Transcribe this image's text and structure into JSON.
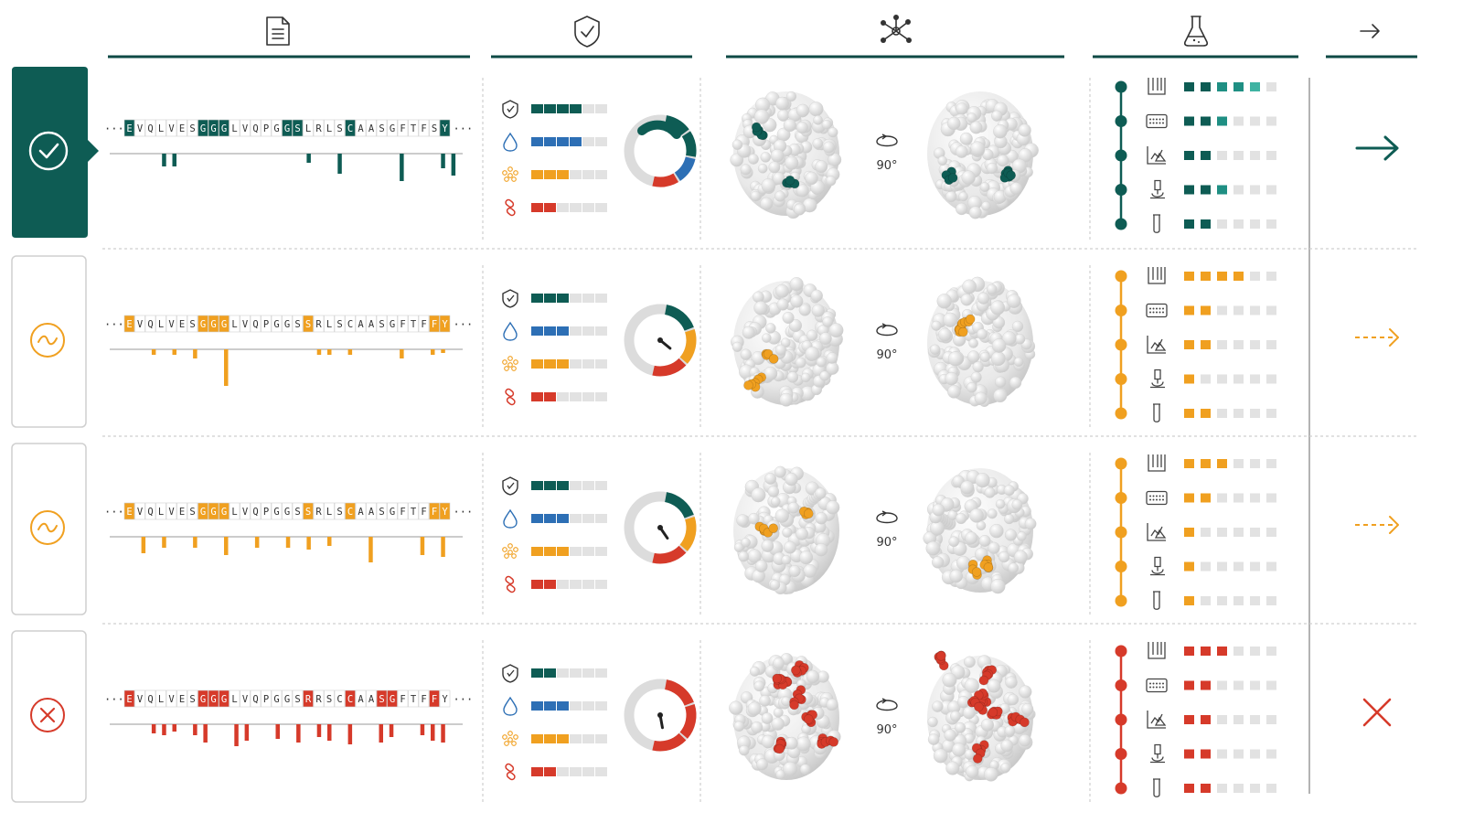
{
  "colors": {
    "teal": "#0e5c54",
    "teal_mid": "#1f8f83",
    "teal_light": "#3fb3a2",
    "orange": "#f0a020",
    "red": "#d63a2a",
    "blue": "#2d6fb5",
    "grey_cell": "#e2e2e2",
    "grey_line": "#c8c8c8",
    "header_line": "#0e4a45"
  },
  "header_icons": [
    "document-icon",
    "shield-check-icon",
    "network-nodes-icon",
    "flask-icon",
    "arrow-right-icon"
  ],
  "sequence_ellipsis": "···",
  "metric_icons": [
    "shield-icon",
    "droplet-icon",
    "cluster-icon",
    "link-icon"
  ],
  "assay_icons": [
    "test-tubes-icon",
    "plate-reader-icon",
    "chart-flask-icon",
    "microscope-icon",
    "vial-icon"
  ],
  "rows": [
    {
      "status": "pass",
      "status_icon": "check-circle-icon",
      "accent": "teal",
      "sequence": [
        "E",
        "V",
        "Q",
        "L",
        "V",
        "E",
        "S",
        "G",
        "G",
        "G",
        "L",
        "V",
        "Q",
        "P",
        "G",
        "G",
        "S",
        "L",
        "R",
        "L",
        "S",
        "C",
        "A",
        "A",
        "S",
        "G",
        "F",
        "T",
        "F",
        "S",
        "Y"
      ],
      "highlights": [
        0,
        7,
        8,
        9,
        15,
        16,
        21,
        30
      ],
      "profile_bars": [
        0,
        0,
        0,
        0,
        0,
        0,
        0,
        0,
        0,
        0,
        0,
        0,
        0,
        0,
        0,
        0,
        0,
        0,
        0,
        0,
        0,
        0,
        0,
        0,
        0,
        0,
        0,
        0,
        0,
        0,
        0
      ],
      "profile_values": [
        0,
        0,
        0,
        0,
        0.35,
        0.35,
        0,
        0,
        0,
        0,
        0,
        0,
        0,
        0,
        0,
        0,
        0,
        0,
        0.25,
        0,
        0,
        0.55,
        0,
        0,
        0,
        0,
        0,
        0.75,
        0,
        0,
        0,
        0.4,
        0.6
      ],
      "metrics": [
        4,
        4,
        3,
        2
      ],
      "gauge": {
        "value": 0.85,
        "segments": [
          "teal",
          "teal",
          "blue",
          "red"
        ]
      },
      "rotation": "90°",
      "assay_levels": [
        5,
        3,
        2,
        3,
        2
      ],
      "decision": "advance"
    },
    {
      "status": "marginal",
      "status_icon": "tilde-circle-icon",
      "accent": "orange",
      "sequence": [
        "E",
        "V",
        "Q",
        "L",
        "V",
        "E",
        "S",
        "G",
        "G",
        "G",
        "L",
        "V",
        "Q",
        "P",
        "G",
        "G",
        "S",
        "S",
        "R",
        "L",
        "S",
        "C",
        "A",
        "A",
        "S",
        "G",
        "F",
        "T",
        "F",
        "F",
        "Y"
      ],
      "highlights": [
        0,
        7,
        8,
        9,
        17,
        29,
        30
      ],
      "profile_values": [
        0,
        0,
        0,
        0.15,
        0,
        0.15,
        0,
        0.25,
        0,
        0,
        1.0,
        0,
        0,
        0,
        0,
        0,
        0,
        0,
        0,
        0.15,
        0.15,
        0,
        0.15,
        0,
        0,
        0,
        0,
        0.25,
        0,
        0,
        0.15,
        0.1,
        0
      ],
      "metrics": [
        3,
        3,
        3,
        2
      ],
      "gauge": {
        "value": 0.55,
        "segments": [
          "teal",
          "orange",
          "red"
        ]
      },
      "rotation": "90°",
      "assay_levels": [
        4,
        2,
        2,
        1,
        2
      ],
      "decision": "conditional"
    },
    {
      "status": "marginal",
      "status_icon": "tilde-circle-icon",
      "accent": "orange",
      "sequence": [
        "E",
        "V",
        "Q",
        "L",
        "V",
        "E",
        "S",
        "G",
        "G",
        "G",
        "L",
        "V",
        "Q",
        "P",
        "G",
        "G",
        "S",
        "S",
        "R",
        "L",
        "S",
        "C",
        "A",
        "A",
        "S",
        "G",
        "F",
        "T",
        "F",
        "F",
        "Y"
      ],
      "highlights": [
        0,
        7,
        8,
        9,
        17,
        21,
        29,
        30
      ],
      "profile_values": [
        0,
        0,
        0.45,
        0,
        0.3,
        0,
        0,
        0.3,
        0,
        0,
        0.5,
        0,
        0,
        0.3,
        0,
        0,
        0.3,
        0,
        0.35,
        0,
        0.25,
        0,
        0,
        0,
        0.7,
        0,
        0,
        0,
        0,
        0.5,
        0,
        0.55,
        0
      ],
      "metrics": [
        3,
        3,
        3,
        2
      ],
      "gauge": {
        "value": 0.45,
        "segments": [
          "teal",
          "orange",
          "red"
        ]
      },
      "rotation": "90°",
      "assay_levels": [
        3,
        2,
        1,
        1,
        1
      ],
      "decision": "conditional"
    },
    {
      "status": "fail",
      "status_icon": "x-circle-icon",
      "accent": "red",
      "sequence": [
        "E",
        "V",
        "Q",
        "L",
        "V",
        "E",
        "S",
        "G",
        "G",
        "G",
        "L",
        "V",
        "Q",
        "P",
        "G",
        "G",
        "S",
        "R",
        "R",
        "S",
        "C",
        "C",
        "A",
        "A",
        "S",
        "G",
        "F",
        "T",
        "F",
        "F",
        "Y"
      ],
      "highlights": [
        0,
        7,
        8,
        9,
        17,
        21,
        24,
        25,
        29
      ],
      "profile_values": [
        0,
        0,
        0,
        0.25,
        0.3,
        0.2,
        0,
        0.3,
        0.5,
        0,
        0,
        0.6,
        0.45,
        0,
        0,
        0.4,
        0,
        0.5,
        0,
        0.35,
        0.45,
        0,
        0.55,
        0,
        0,
        0.5,
        0.35,
        0,
        0,
        0.3,
        0.45,
        0.5,
        0
      ],
      "metrics": [
        2,
        3,
        3,
        2
      ],
      "gauge": {
        "value": 0.3,
        "segments": [
          "red",
          "red",
          "red"
        ]
      },
      "rotation": "90°",
      "assay_levels": [
        3,
        2,
        2,
        2,
        2
      ],
      "decision": "reject"
    }
  ]
}
